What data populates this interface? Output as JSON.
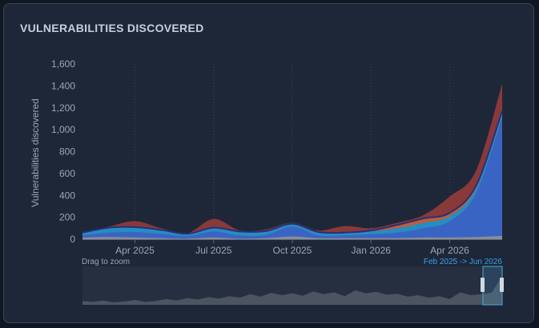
{
  "panel": {
    "title": "VULNERABILITIES DISCOVERED",
    "drag_hint": "Drag to zoom",
    "range_label": "Feb 2025 -> Jun 2026"
  },
  "colors": {
    "background": "#1e2738",
    "critical": "#8e3a3a",
    "high": "#c0603a",
    "medium": "#1e8fc8",
    "low": "#3b62c4",
    "info": "#8d8f96",
    "line": "#2a2f7a",
    "navigator_fill": "#5d6470",
    "selection": "#4aa8d8"
  },
  "chart_data": {
    "type": "area",
    "stacked": true,
    "ylabel": "Vulnerabilities discovered",
    "xlabel": "",
    "ylim": [
      0,
      1600
    ],
    "yticks": [
      0,
      200,
      400,
      600,
      800,
      1000,
      1200,
      1400,
      1600
    ],
    "ytick_labels": [
      "0",
      "200",
      "400",
      "600",
      "800",
      "1,000",
      "1,200",
      "1,400",
      "1,600"
    ],
    "xtick_labels": [
      "Apr 2025",
      "Jul 2025",
      "Oct 2025",
      "Jan 2026",
      "Apr 2026"
    ],
    "xticks": [
      2,
      5,
      8,
      11,
      14
    ],
    "x": [
      "2025-02",
      "2025-03",
      "2025-04",
      "2025-05",
      "2025-06",
      "2025-07",
      "2025-08",
      "2025-09",
      "2025-10",
      "2025-11",
      "2025-12",
      "2026-01",
      "2026-02",
      "2026-03",
      "2026-04",
      "2026-05",
      "2026-06"
    ],
    "grid": "vertical dotted",
    "legend": "none",
    "series": [
      {
        "key": "info",
        "values": [
          15,
          20,
          15,
          10,
          5,
          15,
          5,
          10,
          25,
          10,
          10,
          10,
          10,
          15,
          15,
          20,
          30
        ]
      },
      {
        "key": "low",
        "values": [
          20,
          40,
          50,
          40,
          25,
          55,
          30,
          30,
          90,
          25,
          25,
          35,
          50,
          85,
          150,
          400,
          1080
        ]
      },
      {
        "key": "medium",
        "values": [
          25,
          40,
          40,
          30,
          20,
          30,
          30,
          30,
          20,
          25,
          20,
          25,
          40,
          50,
          45,
          40,
          40
        ]
      },
      {
        "key": "high",
        "values": [
          0,
          5,
          5,
          5,
          0,
          5,
          5,
          5,
          5,
          5,
          5,
          10,
          30,
          40,
          30,
          25,
          20
        ]
      },
      {
        "key": "critical",
        "values": [
          0,
          10,
          55,
          15,
          5,
          80,
          10,
          15,
          10,
          15,
          60,
          20,
          20,
          30,
          150,
          140,
          250
        ]
      }
    ],
    "navigator": {
      "values": [
        8,
        6,
        9,
        5,
        7,
        10,
        6,
        8,
        12,
        9,
        14,
        11,
        16,
        13,
        18,
        15,
        22,
        17,
        25,
        20,
        24,
        19,
        28,
        22,
        26,
        18,
        30,
        24,
        27,
        21,
        23,
        17,
        20,
        15,
        18,
        12,
        26,
        20,
        22,
        25,
        60
      ]
    }
  }
}
